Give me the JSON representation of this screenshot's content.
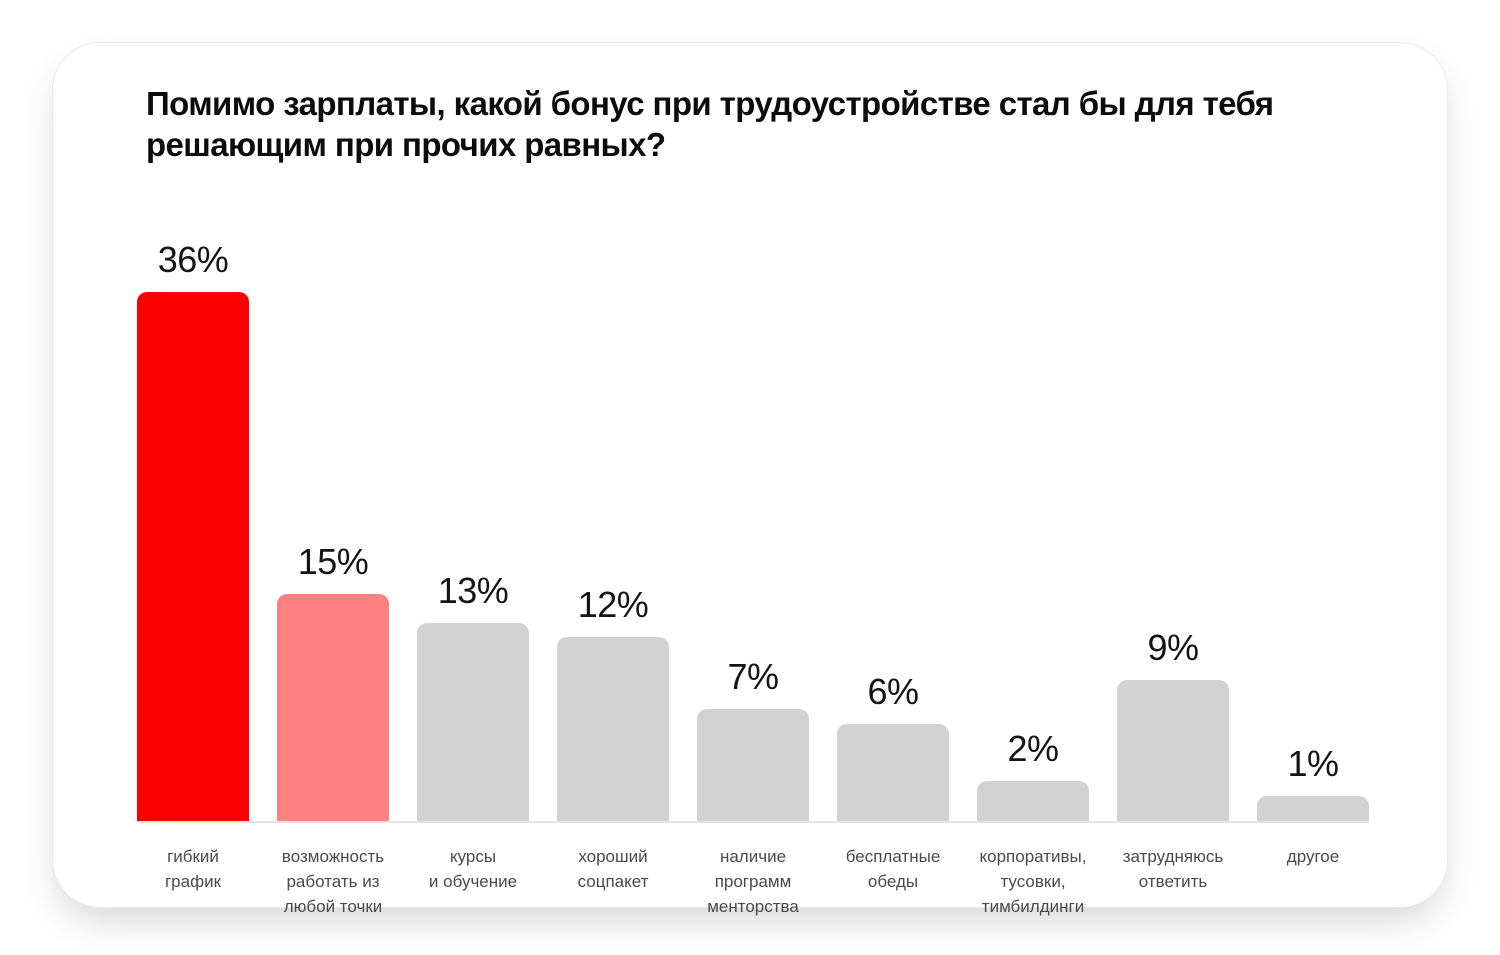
{
  "card": {
    "title_line1": "Помимо зарплаты, какой бонус при трудоустройстве стал бы для тебя",
    "title_line2": "решающим при прочих равных?"
  },
  "chart_data": {
    "type": "bar",
    "title": "Помимо зарплаты, какой бонус при трудоустройстве стал бы для тебя решающим при прочих равных?",
    "unit": "%",
    "categories": [
      "гибкий график",
      "возможность работать из любой точки",
      "курсы и обучение",
      "хороший соцпакет",
      "наличие программ менторства",
      "бесплатные обеды",
      "корпоративы, тусовки, тимбилдинги",
      "затрудняюсь ответить",
      "другое"
    ],
    "category_lines": [
      [
        "гибкий",
        "график"
      ],
      [
        "возможность",
        "работать из",
        "любой точки"
      ],
      [
        "курсы",
        "и обучение"
      ],
      [
        "хороший",
        "соцпакет"
      ],
      [
        "наличие",
        "программ",
        "менторства"
      ],
      [
        "бесплатные",
        "обеды"
      ],
      [
        "корпоративы,",
        "тусовки,",
        "тимбилдинги"
      ],
      [
        "затрудняюсь",
        "ответить"
      ],
      [
        "другое"
      ]
    ],
    "values": [
      36,
      15,
      13,
      12,
      7,
      6,
      2,
      9,
      1
    ],
    "value_labels": [
      "36%",
      "15%",
      "13%",
      "12%",
      "7%",
      "6%",
      "2%",
      "9%",
      "1%"
    ],
    "colors": [
      "#fc0000",
      "#fd8181",
      "#d2d2d2",
      "#d2d2d2",
      "#d2d2d2",
      "#d2d2d2",
      "#d2d2d2",
      "#d2d2d2",
      "#d2d2d2"
    ],
    "ylim": [
      0,
      36
    ],
    "grid": false,
    "legend": false,
    "xlabel": "",
    "ylabel": ""
  },
  "theme": {
    "highlight_color": "#fc0000",
    "secondary_color": "#fd8181",
    "neutral_bar_color": "#d2d2d2",
    "axis_line_color": "#e4e4e4",
    "category_text_color": "#4a4a4a",
    "title_text_color": "#0c0c0c",
    "card_background": "#ffffff"
  }
}
